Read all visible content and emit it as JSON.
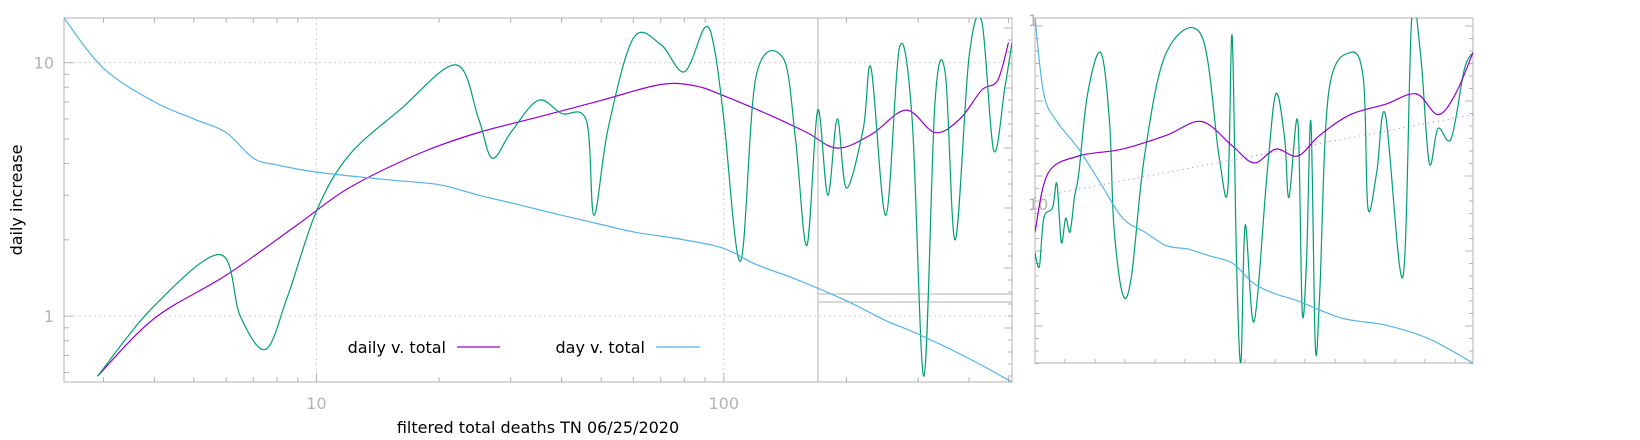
{
  "chart_data": [
    {
      "type": "line",
      "xlabel": "filtered total deaths TN 06/25/2020",
      "ylabel": "daily increase",
      "x_scale": "log",
      "y_scale": "log",
      "xlim": [
        2.4,
        510
      ],
      "ylim": [
        0.55,
        15
      ],
      "x_ticks": [
        10,
        100
      ],
      "y_ticks": [
        1,
        10
      ],
      "grid": true,
      "legend_position": "bottom-center",
      "series": [
        {
          "name": "daily v. total",
          "color": "#9400d3",
          "x": [
            2.9,
            4,
            6,
            9,
            12,
            18,
            25,
            35,
            50,
            70,
            85,
            100,
            130,
            160,
            190,
            230,
            280,
            330,
            380,
            430,
            470,
            500
          ],
          "y": [
            0.58,
            0.98,
            1.45,
            2.3,
            3.2,
            4.4,
            5.3,
            6.1,
            7.1,
            8.2,
            8.1,
            7.4,
            6.2,
            5.3,
            4.6,
            5.2,
            6.5,
            5.3,
            6.0,
            7.8,
            8.5,
            12
          ]
        },
        {
          "name": "",
          "color": "#009e73",
          "x": [
            2.9,
            4,
            5.8,
            6.5,
            7.5,
            8.5,
            10,
            12,
            16,
            22,
            25,
            27,
            30,
            35,
            40,
            46,
            48,
            52,
            60,
            70,
            80,
            90,
            95,
            100,
            110,
            120,
            140,
            150,
            160,
            170,
            180,
            190,
            200,
            220,
            230,
            250,
            270,
            290,
            310,
            330,
            350,
            370,
            400,
            430,
            460,
            490,
            510
          ],
          "y": [
            0.58,
            1.1,
            1.75,
            1.0,
            0.74,
            1.2,
            2.6,
            4.3,
            6.5,
            9.8,
            6.0,
            4.2,
            5.3,
            7.1,
            6.3,
            5.9,
            2.5,
            5.5,
            12.5,
            11.8,
            9.2,
            13.8,
            11.2,
            6.0,
            1.65,
            8.8,
            10.4,
            5.0,
            1.9,
            6.5,
            3.0,
            6.0,
            3.2,
            5.5,
            9.5,
            2.5,
            11.5,
            6.0,
            0.58,
            7.0,
            9.0,
            2.0,
            10.5,
            14.5,
            4.5,
            8.0,
            12.0
          ]
        },
        {
          "name": "day v. total",
          "color": "#56b4e9",
          "x": [
            2.4,
            3,
            4,
            5,
            6,
            7,
            8,
            10,
            15,
            20,
            25,
            30,
            40,
            50,
            60,
            80,
            100,
            120,
            150,
            200,
            250,
            300,
            400,
            510
          ],
          "y": [
            15,
            9.5,
            7.0,
            6.0,
            5.3,
            4.2,
            3.95,
            3.7,
            3.45,
            3.3,
            3.0,
            2.8,
            2.5,
            2.3,
            2.15,
            2.0,
            1.85,
            1.6,
            1.4,
            1.15,
            0.96,
            0.85,
            0.68,
            0.55
          ]
        }
      ]
    },
    {
      "type": "line",
      "y_scale": "log",
      "y_ticks": [
        1,
        10
      ],
      "xlabel": "",
      "ylabel": "",
      "series": [
        {
          "name": "",
          "color": "#009e73",
          "x": [
            0,
            0.01,
            0.02,
            0.04,
            0.05,
            0.06,
            0.07,
            0.08,
            0.09,
            0.1,
            0.12,
            0.15,
            0.17,
            0.18,
            0.2,
            0.22,
            0.25,
            0.3,
            0.38,
            0.42,
            0.44,
            0.45,
            0.46,
            0.47,
            0.48,
            0.5,
            0.53,
            0.55,
            0.57,
            0.58,
            0.6,
            0.61,
            0.62,
            0.63,
            0.64,
            0.65,
            0.67,
            0.72,
            0.75,
            0.76,
            0.78,
            0.8,
            0.84,
            0.86,
            0.88,
            0.9,
            0.92,
            0.95,
            0.98,
            1.0
          ],
          "y": [
            0.32,
            0.28,
            0.42,
            0.45,
            0.52,
            0.35,
            0.42,
            0.38,
            0.48,
            0.55,
            0.78,
            0.9,
            0.7,
            0.4,
            0.2,
            0.25,
            0.6,
            0.9,
            0.95,
            0.6,
            0.5,
            0.95,
            0.3,
            0.0,
            0.4,
            0.12,
            0.55,
            0.78,
            0.65,
            0.48,
            0.7,
            0.15,
            0.3,
            0.7,
            0.05,
            0.2,
            0.78,
            0.9,
            0.82,
            0.45,
            0.55,
            0.72,
            0.25,
            1.0,
            0.9,
            0.58,
            0.68,
            0.65,
            0.85,
            0.9
          ]
        },
        {
          "name": "",
          "color": "#9400d3",
          "x": [
            0,
            0.03,
            0.1,
            0.2,
            0.3,
            0.38,
            0.45,
            0.5,
            0.55,
            0.6,
            0.65,
            0.72,
            0.8,
            0.87,
            0.92,
            0.96,
            1.0
          ],
          "y": [
            0.38,
            0.55,
            0.6,
            0.62,
            0.66,
            0.7,
            0.63,
            0.58,
            0.62,
            0.6,
            0.66,
            0.72,
            0.75,
            0.78,
            0.72,
            0.78,
            0.9
          ]
        },
        {
          "name": "",
          "color": "#56b4e9",
          "x": [
            0,
            0.02,
            0.05,
            0.1,
            0.15,
            0.2,
            0.25,
            0.3,
            0.35,
            0.4,
            0.45,
            0.5,
            0.55,
            0.6,
            0.7,
            0.8,
            0.9,
            1.0
          ],
          "y": [
            1.0,
            0.78,
            0.7,
            0.62,
            0.52,
            0.42,
            0.38,
            0.34,
            0.33,
            0.31,
            0.29,
            0.23,
            0.2,
            0.18,
            0.13,
            0.11,
            0.07,
            0.0
          ]
        }
      ]
    }
  ]
}
